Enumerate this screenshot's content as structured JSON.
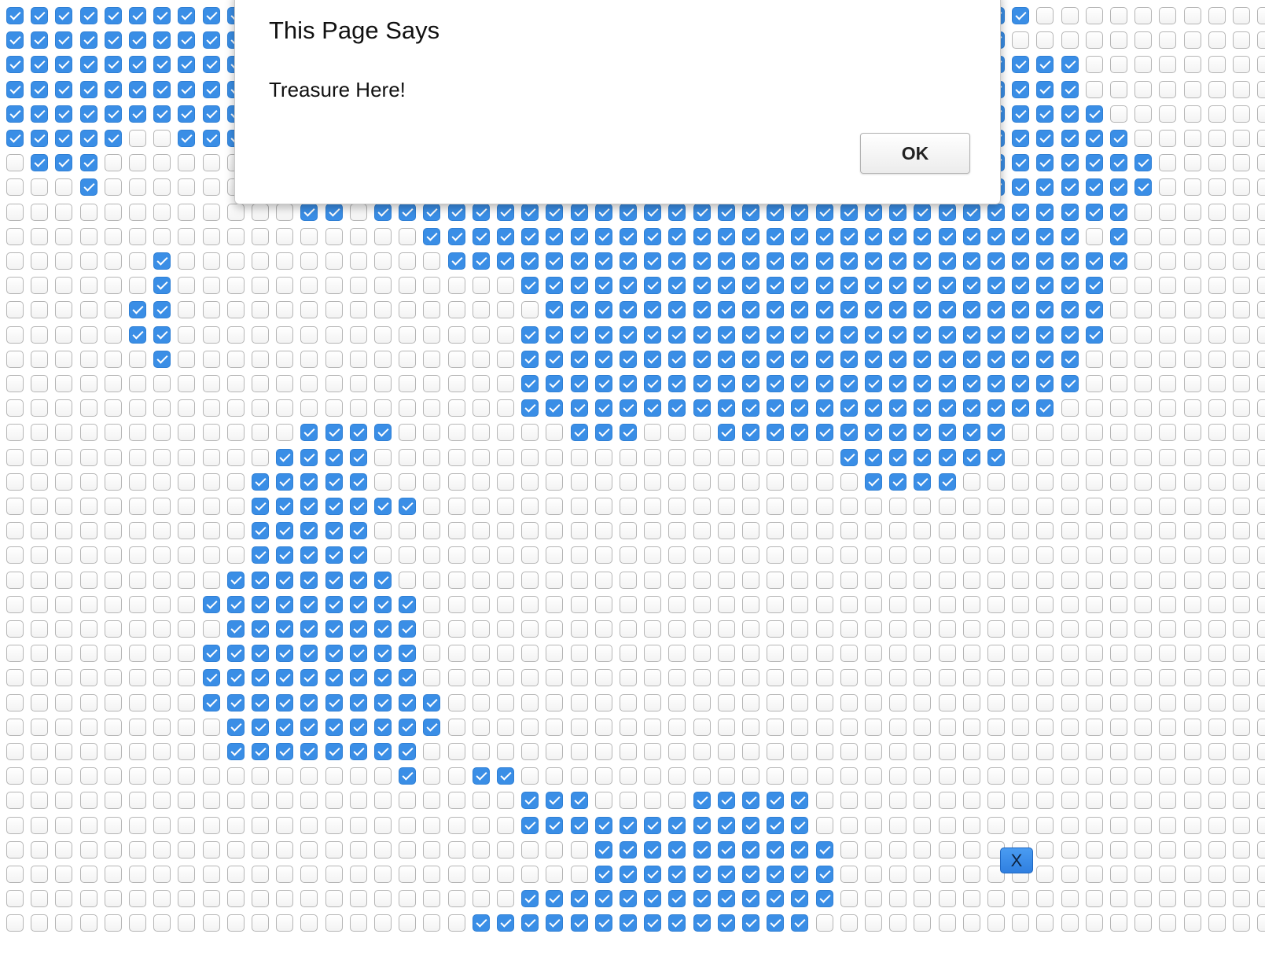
{
  "dialog": {
    "title": "This Page Says",
    "message": "Treasure Here!",
    "ok_label": "OK"
  },
  "close_button_label": "X",
  "colors": {
    "checked": "#3a8ee6",
    "unchecked_border": "#b5b5b5"
  },
  "checkbox_grid": {
    "columns": 50,
    "rows": [
      "1111111111111111111111111111111111111111110000000000",
      "1111111111111111111111111111111111111111100000000000",
      "1111111111111111111111111111111111111111111100000000",
      "1111111111111111111111111111111111111111111100000000",
      "1111111111111111111111111111111111111111111110000000",
      "1111100111111111111111111111111111111111111111000000",
      "0111000000111111111111111111111111111111111111100000",
      "0001000000111111111111111111111111111111111111100000",
      "0000000000001101111111111111111111111111111111000000",
      "0000000000000000011111111111111111111111111101000000",
      "0000001000000000001111111111111111111111111111000000",
      "0000001000000000000001111111111111111111111110000000",
      "0000011000000000000000111111111111111111111110000000",
      "0000011000000000000001111111111111111111111110000000",
      "0000001000000000000001111111111111111111111100000000",
      "0000000000000000000001111111111111111111111100000000",
      "0000000000000000000001111111111111111111111000000000",
      "0000000000001111000000011100011111111111100000000000",
      "0000000000011110000000000000000000111111100000000000",
      "0000000000111110000000000000000000011110000000000000",
      "0000000000111111100000000000000000000000000000000000",
      "0000000000111110000000000000000000000000000000000000",
      "0000000000111110000000000000000000000000000000000000",
      "0000000001111111000000000000000000000000000000000000",
      "0000000011111111100000000000000000000000000000000000",
      "0000000001111111100000000000000000000000000000000000",
      "0000000011111111100000000000000000000000000000000000",
      "0000000011111111100000000000000000000000000000000000",
      "0000000011111111110000000000000000000000000000000000",
      "0000000001111111110000000000000000000000000000000000",
      "0000000001111111100000000000000000000000000000000000",
      "0000000000000000100110000000000000000000000000000000",
      "0000000000000000000001110000111110000000000000000000",
      "0000000000000000000001111111111110000000000000000000",
      "0000000000000000000000001111111111000000000000000000",
      "0000000000000000000000001111111111000000000000000000",
      "0000000000000000000001111111111111000000000000000000",
      "0000000000000000000111111111111110000000000000000000"
    ]
  }
}
